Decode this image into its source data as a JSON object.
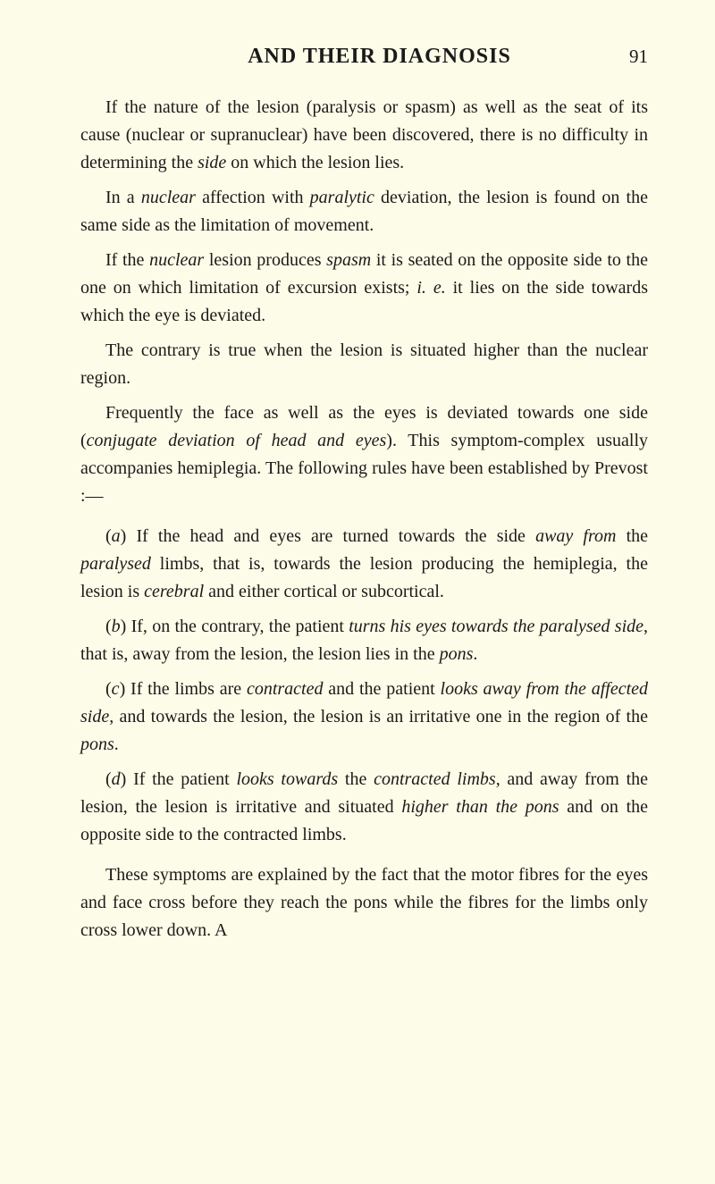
{
  "header": {
    "title": "AND THEIR DIAGNOSIS",
    "page_number": "91"
  },
  "paragraphs": {
    "p1": "If the nature of the lesion (paralysis or spasm) as well as the seat of its cause (nuclear or supranuclear) have been discovered, there is no difficulty in determining the ",
    "p1_em1": "side",
    "p1_cont": " on which the lesion lies.",
    "p2a": "In a ",
    "p2_em1": "nuclear",
    "p2b": " affection with ",
    "p2_em2": "paralytic",
    "p2c": " deviation, the lesion is found on the same side as the limitation of movement.",
    "p3a": "If the ",
    "p3_em1": "nuclear",
    "p3b": " lesion produces ",
    "p3_em2": "spasm",
    "p3c": " it is seated on the opposite side to the one on which limitation of excursion exists; ",
    "p3_em3": "i. e.",
    "p3d": " it lies on the side towards which the eye is deviated.",
    "p4": "The contrary is true when the lesion is situated higher than the nuclear region.",
    "p5a": "Frequently the face as well as the eyes is deviated towards one side (",
    "p5_em1": "conjugate deviation of head and eyes",
    "p5b": "). This symptom-complex usually accompanies hemiplegia. The following rules have been established by Prevost :—",
    "la_a": "(",
    "la_em1": "a",
    "la_b": ") If the head and eyes are turned towards the side ",
    "la_em2": "away from",
    "la_c": " the ",
    "la_em3": "paralysed",
    "la_d": " limbs, that is, towards the lesion producing the hemiplegia, the lesion is ",
    "la_em4": "cerebral",
    "la_e": " and either cortical or subcortical.",
    "lb_a": "(",
    "lb_em1": "b",
    "lb_b": ") If, on the contrary, the patient ",
    "lb_em2": "turns his eyes towards the paralysed side",
    "lb_c": ", that is, away from the lesion, the lesion lies in the ",
    "lb_em3": "pons",
    "lb_d": ".",
    "lc_a": "(",
    "lc_em1": "c",
    "lc_b": ") If the limbs are ",
    "lc_em2": "contracted",
    "lc_c": " and the patient ",
    "lc_em3": "looks away from the affected side",
    "lc_d": ", and towards the lesion, the lesion is an irritative one in the region of the ",
    "lc_em4": "pons",
    "lc_e": ".",
    "ld_a": "(",
    "ld_em1": "d",
    "ld_b": ") If the patient ",
    "ld_em2": "looks towards",
    "ld_c": " the ",
    "ld_em3": "contracted limbs",
    "ld_d": ", and away from the lesion, the lesion is irritative and situated ",
    "ld_em4": "higher than the pons",
    "ld_e": " and on the opposite side to the contracted limbs.",
    "p6": "These symptoms are explained by the fact that the motor fibres for the eyes and face cross before they reach the pons while the fibres for the limbs only cross lower down. A"
  }
}
